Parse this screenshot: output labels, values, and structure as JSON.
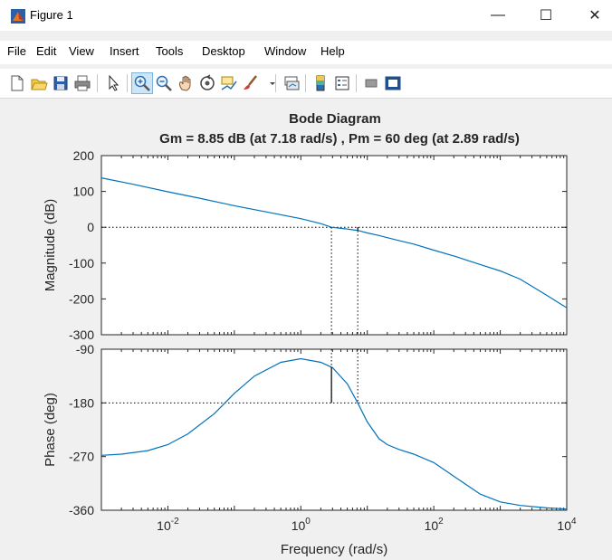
{
  "window": {
    "title": "Figure 1",
    "min_label": "—",
    "max_label": "☐",
    "close_label": "✕"
  },
  "menu": {
    "items": [
      "File",
      "Edit",
      "View",
      "Insert",
      "Tools",
      "Desktop",
      "Window",
      "Help"
    ]
  },
  "toolbar": {
    "icons": [
      "new-figure-icon",
      "open-file-icon",
      "save-icon",
      "print-icon",
      "pointer-icon",
      "zoom-in-icon",
      "zoom-out-icon",
      "pan-icon",
      "rotate-icon",
      "data-cursor-icon",
      "brush-icon",
      "link-plot-icon",
      "colorbar-icon",
      "legend-icon",
      "hide-plot-tools-icon",
      "show-plot-tools-icon"
    ],
    "active": "zoom-in-icon"
  },
  "chart_data": {
    "type": "line",
    "title": "Bode Diagram",
    "subtitle": "Gm = 8.85 dB (at 7.18 rad/s) ,  Pm = 60 deg (at 2.89 rad/s)",
    "xlabel": "Frequency  (rad/s)",
    "xscale": "log",
    "xlim": [
      0.001,
      10000
    ],
    "x_ticks": [
      0.01,
      1,
      100,
      10000
    ],
    "x_tick_labels": [
      {
        "base": "10",
        "exp": "-2"
      },
      {
        "base": "10",
        "exp": "0"
      },
      {
        "base": "10",
        "exp": "2"
      },
      {
        "base": "10",
        "exp": "4"
      }
    ],
    "grid": false,
    "line_color": "#0072bd",
    "gain_margin": {
      "value_db": 8.85,
      "frequency": 7.18
    },
    "phase_margin": {
      "value_deg": 60,
      "frequency": 2.89
    },
    "magnitude": {
      "ylabel": "Magnitude (dB)",
      "ylim": [
        -300,
        200
      ],
      "y_ticks": [
        200,
        100,
        0,
        -100,
        -200,
        -300
      ],
      "reference_line": 0,
      "x": [
        0.001,
        0.003,
        0.01,
        0.03,
        0.1,
        0.3,
        1,
        2,
        2.89,
        4,
        5,
        6,
        7.18,
        8,
        10,
        15,
        20,
        30,
        50,
        100,
        200,
        500,
        1000,
        2000,
        5000,
        10000
      ],
      "y": [
        138,
        120,
        99,
        81,
        60,
        43,
        24,
        10,
        0,
        -3,
        -5,
        -7,
        -8.85,
        -11,
        -16,
        -23,
        -29,
        -37,
        -47,
        -64,
        -80,
        -104,
        -122,
        -145,
        -190,
        -225
      ]
    },
    "phase": {
      "ylabel": "Phase (deg)",
      "ylim": [
        -360,
        -90
      ],
      "y_ticks": [
        -90,
        -180,
        -270,
        -360
      ],
      "reference_line": -180,
      "x": [
        0.001,
        0.002,
        0.005,
        0.01,
        0.02,
        0.05,
        0.1,
        0.2,
        0.5,
        1,
        2,
        3,
        5,
        7.18,
        10,
        15,
        20,
        30,
        50,
        100,
        200,
        500,
        1000,
        2000,
        5000,
        10000
      ],
      "y": [
        -268,
        -266,
        -260,
        -250,
        -232,
        -198,
        -164,
        -135,
        -112,
        -106,
        -112,
        -121,
        -148,
        -180,
        -212,
        -240,
        -250,
        -258,
        -266,
        -280,
        -303,
        -333,
        -346,
        -352,
        -356,
        -358
      ]
    }
  }
}
